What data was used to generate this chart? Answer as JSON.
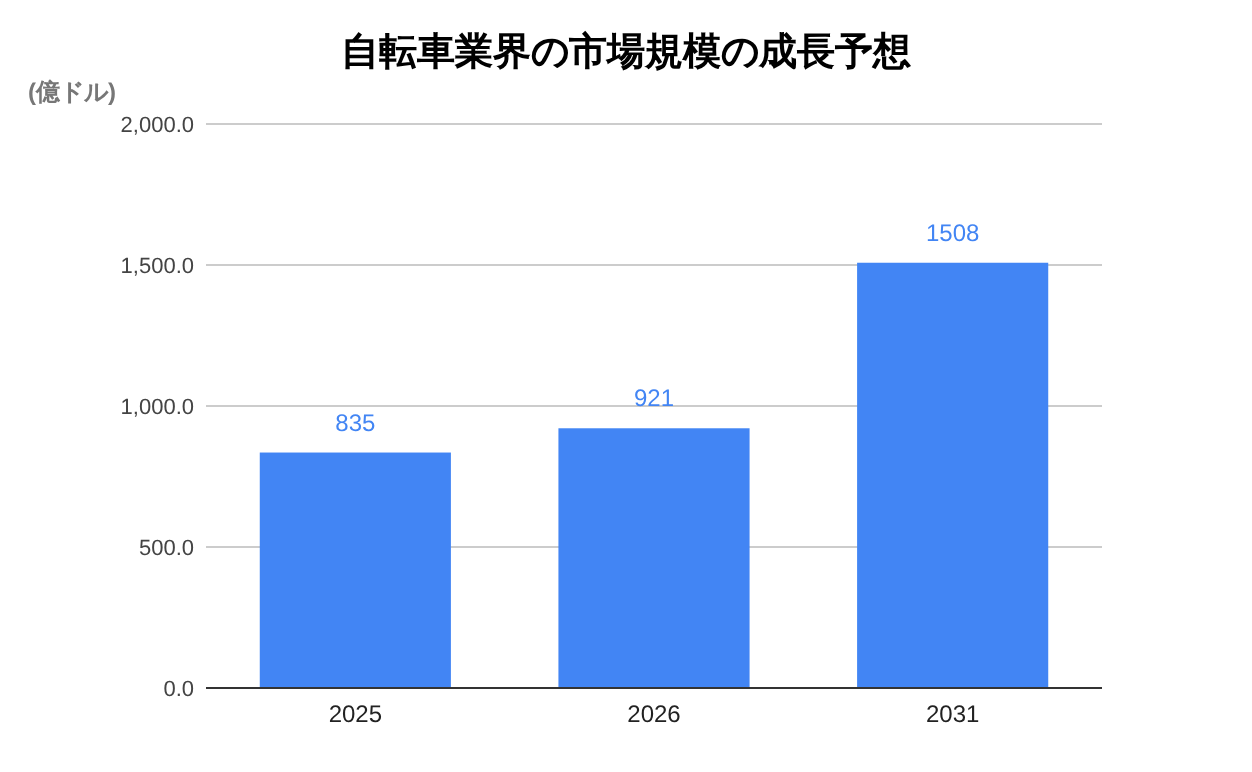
{
  "chart_data": {
    "type": "bar",
    "title": "自転車業界の市場規模の成長予想",
    "ylabel": "(億ドル)",
    "categories": [
      "2025",
      "2026",
      "2031"
    ],
    "values": [
      835,
      921,
      1508
    ],
    "color": "#4285f4",
    "ylim": [
      0,
      2000
    ],
    "yticks": [
      {
        "value": 0,
        "label": "0.0"
      },
      {
        "value": 500,
        "label": "500.0"
      },
      {
        "value": 1000,
        "label": "1,000.0"
      },
      {
        "value": 1500,
        "label": "1,500.0"
      },
      {
        "value": 2000,
        "label": "2,000.0"
      }
    ],
    "grid": "y",
    "data_labels": true
  }
}
